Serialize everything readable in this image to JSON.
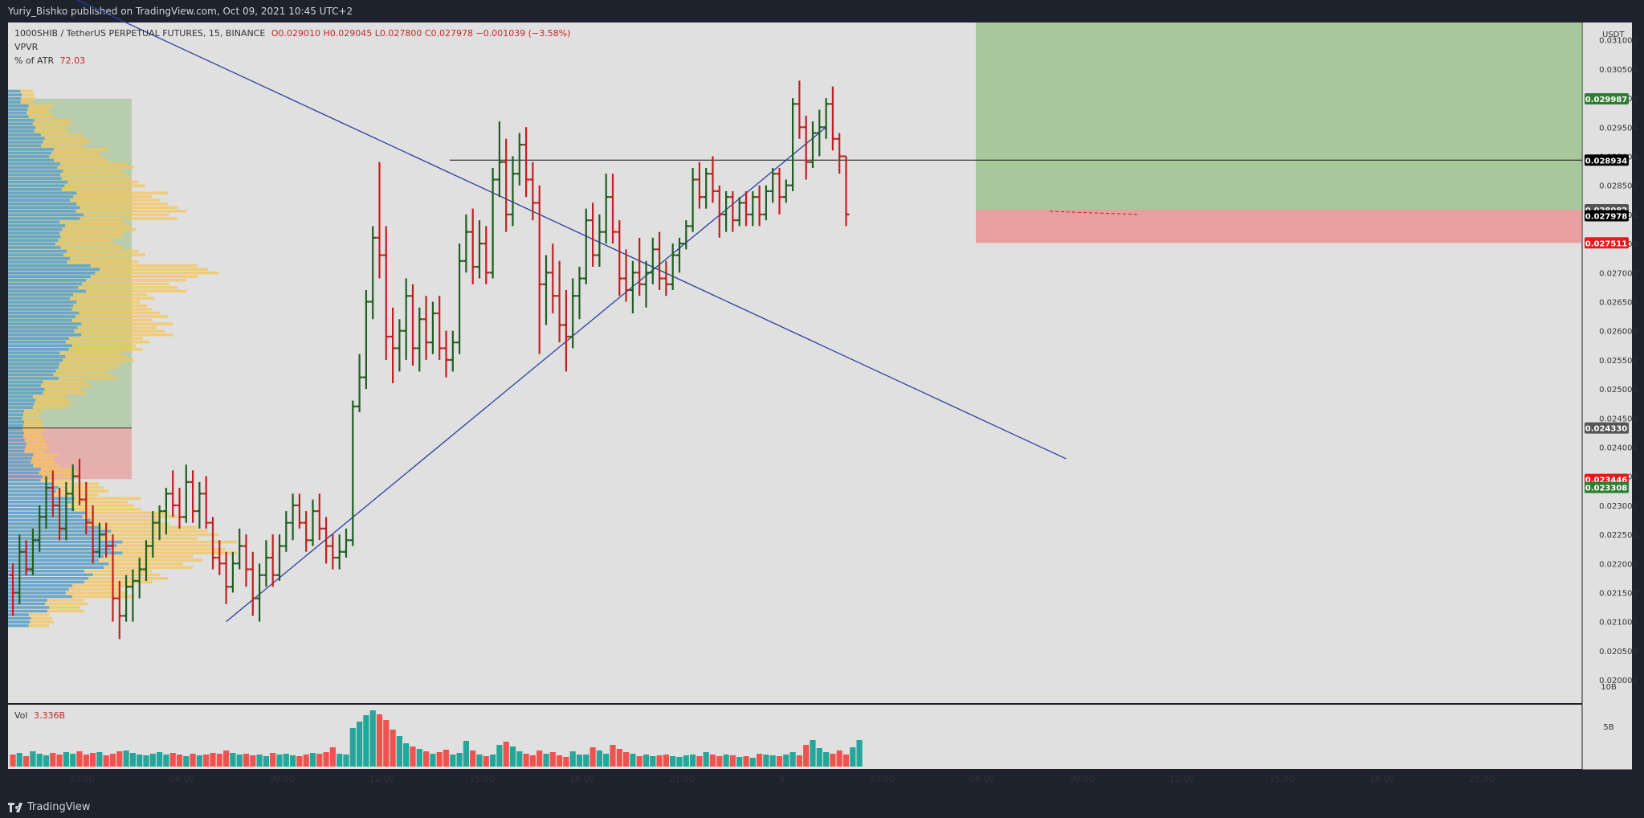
{
  "header": {
    "publisher": "Yuriy_Bishko published on TradingView.com, Oct 09, 2021 10:45 UTC+2"
  },
  "legend": {
    "symbol": "1000SHIB / TetherUS PERPETUAL FUTURES, 15, BINANCE",
    "ohlc": "O0.029010  H0.029045  L0.027800  C0.027978  −0.001039 (−3.58%)",
    "indicator1": "VPVR",
    "indicator2_label": "% of ATR",
    "indicator2_value": "72.03",
    "volume_label": "Vol",
    "volume_value": "3.336B"
  },
  "footer": {
    "brand": "TradingView"
  },
  "colors": {
    "up": "#1e5e20",
    "down": "#c11f1f",
    "vol_up": "#26a69a",
    "vol_down": "#ef5350",
    "trend": "#2c3e9e",
    "bg": "#e0e0e0"
  },
  "chart_data": {
    "type": "bar",
    "y_unit": "USDT",
    "ylim": [
      0.0196,
      0.0313
    ],
    "y_ticks": [
      "0.031000",
      "0.030500",
      "0.030000",
      "0.029500",
      "0.029000",
      "0.028500",
      "0.028000",
      "0.027500",
      "0.027000",
      "0.026500",
      "0.026000",
      "0.025500",
      "0.025000",
      "0.024500",
      "0.024000",
      "0.023500",
      "0.023000",
      "0.022500",
      "0.022000",
      "0.021500",
      "0.021000",
      "0.020500",
      "0.020000"
    ],
    "x_ticks": [
      "03:00",
      "06:00",
      "09:00",
      "12:00",
      "15:00",
      "18:00",
      "21:00",
      "9",
      "03:00",
      "06:00",
      "09:00",
      "12:00",
      "15:00",
      "18:00",
      "21:00"
    ],
    "price_labels": [
      {
        "text": "0.029987",
        "bg": "#2e7d32",
        "fg": "#ffffff"
      },
      {
        "text": "0.028934",
        "bg": "#000000",
        "fg": "#ffffff"
      },
      {
        "text": "0.028082",
        "bg": "#555555",
        "fg": "#ffffff"
      },
      {
        "text": "0.027978",
        "bg": "#000000",
        "fg": "#ffffff"
      },
      {
        "text": "0.027511",
        "bg": "#e31b1b",
        "fg": "#ffffff"
      },
      {
        "text": "0.024330",
        "bg": "#555555",
        "fg": "#ffffff"
      },
      {
        "text": "0.023446",
        "bg": "#e31b1b",
        "fg": "#ffffff"
      },
      {
        "text": "0.023308",
        "bg": "#2e7d32",
        "fg": "#ffffff"
      }
    ],
    "volume_ticks": [
      "10B",
      "5B"
    ],
    "horizontal_level": 0.028934,
    "position": {
      "entry": 0.028082,
      "target": 0.0313,
      "stop": 0.027511
    },
    "trendlines": [
      {
        "name": "descending",
        "from": [
          0,
          0.0322
        ],
        "to": [
          158,
          0.0238
        ]
      },
      {
        "name": "ascending",
        "from": [
          32,
          0.021
        ],
        "to": [
          122,
          0.0295
        ]
      }
    ],
    "candles_ohlc": [
      [
        0.0218,
        0.022,
        0.0211,
        0.0215
      ],
      [
        0.0215,
        0.0225,
        0.0213,
        0.0222
      ],
      [
        0.0222,
        0.0224,
        0.0218,
        0.0219
      ],
      [
        0.0219,
        0.0226,
        0.0218,
        0.0224
      ],
      [
        0.0224,
        0.023,
        0.0222,
        0.0228
      ],
      [
        0.0228,
        0.0235,
        0.0226,
        0.0233
      ],
      [
        0.0233,
        0.0236,
        0.0228,
        0.023
      ],
      [
        0.023,
        0.0233,
        0.0224,
        0.0226
      ],
      [
        0.0226,
        0.0234,
        0.0224,
        0.0232
      ],
      [
        0.0232,
        0.0237,
        0.0229,
        0.0235
      ],
      [
        0.0235,
        0.0238,
        0.023,
        0.0231
      ],
      [
        0.0231,
        0.0234,
        0.0225,
        0.0227
      ],
      [
        0.0227,
        0.023,
        0.022,
        0.0222
      ],
      [
        0.0222,
        0.0227,
        0.0221,
        0.0225
      ],
      [
        0.0225,
        0.0227,
        0.0221,
        0.0223
      ],
      [
        0.0223,
        0.0225,
        0.021,
        0.0214
      ],
      [
        0.0214,
        0.0217,
        0.0207,
        0.0211
      ],
      [
        0.0211,
        0.0218,
        0.021,
        0.0216
      ],
      [
        0.0216,
        0.0219,
        0.021,
        0.0217
      ],
      [
        0.0217,
        0.0221,
        0.0214,
        0.0219
      ],
      [
        0.0219,
        0.0224,
        0.0217,
        0.0223
      ],
      [
        0.0223,
        0.0229,
        0.0221,
        0.0227
      ],
      [
        0.0227,
        0.023,
        0.0224,
        0.0229
      ],
      [
        0.0229,
        0.0233,
        0.0225,
        0.0232
      ],
      [
        0.0232,
        0.0236,
        0.0228,
        0.023
      ],
      [
        0.023,
        0.0233,
        0.0226,
        0.0228
      ],
      [
        0.0228,
        0.0237,
        0.0227,
        0.0234
      ],
      [
        0.0234,
        0.0236,
        0.0227,
        0.0229
      ],
      [
        0.0229,
        0.0234,
        0.0226,
        0.0232
      ],
      [
        0.0232,
        0.0235,
        0.0226,
        0.0227
      ],
      [
        0.0227,
        0.0228,
        0.0219,
        0.0221
      ],
      [
        0.0221,
        0.0224,
        0.0218,
        0.022
      ],
      [
        0.022,
        0.0222,
        0.0213,
        0.0216
      ],
      [
        0.0216,
        0.0222,
        0.0215,
        0.022
      ],
      [
        0.022,
        0.0226,
        0.0219,
        0.0223
      ],
      [
        0.0223,
        0.0225,
        0.0216,
        0.0219
      ],
      [
        0.0219,
        0.0222,
        0.0211,
        0.0214
      ],
      [
        0.0214,
        0.022,
        0.021,
        0.0218
      ],
      [
        0.0218,
        0.0224,
        0.0216,
        0.0221
      ],
      [
        0.0221,
        0.0225,
        0.0216,
        0.0218
      ],
      [
        0.0218,
        0.0225,
        0.0217,
        0.0223
      ],
      [
        0.0223,
        0.0229,
        0.0222,
        0.0227
      ],
      [
        0.0227,
        0.0232,
        0.0224,
        0.023
      ],
      [
        0.023,
        0.0232,
        0.0226,
        0.0227
      ],
      [
        0.0227,
        0.0229,
        0.0222,
        0.0224
      ],
      [
        0.0224,
        0.0231,
        0.0223,
        0.0229
      ],
      [
        0.0229,
        0.0232,
        0.0224,
        0.0226
      ],
      [
        0.0226,
        0.0228,
        0.022,
        0.0223
      ],
      [
        0.0223,
        0.0225,
        0.0219,
        0.0221
      ],
      [
        0.0221,
        0.0225,
        0.0219,
        0.0222
      ],
      [
        0.0222,
        0.0226,
        0.0221,
        0.0224
      ],
      [
        0.0224,
        0.0248,
        0.0223,
        0.0247
      ],
      [
        0.0247,
        0.0256,
        0.0246,
        0.0252
      ],
      [
        0.0252,
        0.0267,
        0.025,
        0.0265
      ],
      [
        0.0265,
        0.0278,
        0.0262,
        0.0276
      ],
      [
        0.0276,
        0.0289,
        0.0269,
        0.0273
      ],
      [
        0.0273,
        0.0278,
        0.0255,
        0.0259
      ],
      [
        0.0259,
        0.0264,
        0.0251,
        0.0257
      ],
      [
        0.0257,
        0.0262,
        0.0253,
        0.026
      ],
      [
        0.026,
        0.0269,
        0.0255,
        0.0266
      ],
      [
        0.0266,
        0.0268,
        0.0254,
        0.0257
      ],
      [
        0.0257,
        0.0264,
        0.0253,
        0.0262
      ],
      [
        0.0262,
        0.0266,
        0.0255,
        0.0258
      ],
      [
        0.0258,
        0.0265,
        0.0256,
        0.0263
      ],
      [
        0.0263,
        0.0266,
        0.0255,
        0.0257
      ],
      [
        0.0257,
        0.026,
        0.0252,
        0.0255
      ],
      [
        0.0255,
        0.026,
        0.0253,
        0.0258
      ],
      [
        0.0258,
        0.0275,
        0.0256,
        0.0272
      ],
      [
        0.0272,
        0.028,
        0.027,
        0.0277
      ],
      [
        0.0277,
        0.0281,
        0.0268,
        0.0271
      ],
      [
        0.0271,
        0.0279,
        0.0269,
        0.0275
      ],
      [
        0.0275,
        0.0278,
        0.0268,
        0.027
      ],
      [
        0.027,
        0.0288,
        0.0269,
        0.0286
      ],
      [
        0.0286,
        0.0296,
        0.0283,
        0.0289
      ],
      [
        0.0289,
        0.0293,
        0.0277,
        0.028
      ],
      [
        0.028,
        0.029,
        0.0278,
        0.0287
      ],
      [
        0.0287,
        0.0294,
        0.0285,
        0.0292
      ],
      [
        0.0292,
        0.0295,
        0.0283,
        0.0286
      ],
      [
        0.0286,
        0.0289,
        0.0279,
        0.0282
      ],
      [
        0.0282,
        0.0285,
        0.0256,
        0.0268
      ],
      [
        0.0268,
        0.0273,
        0.0261,
        0.027
      ],
      [
        0.027,
        0.0275,
        0.0263,
        0.0266
      ],
      [
        0.0266,
        0.0272,
        0.0258,
        0.0261
      ],
      [
        0.0261,
        0.0267,
        0.0253,
        0.0259
      ],
      [
        0.0259,
        0.0269,
        0.0257,
        0.0266
      ],
      [
        0.0266,
        0.0271,
        0.0262,
        0.0269
      ],
      [
        0.0269,
        0.0281,
        0.0268,
        0.0279
      ],
      [
        0.0279,
        0.0282,
        0.0271,
        0.0273
      ],
      [
        0.0273,
        0.028,
        0.0271,
        0.0277
      ],
      [
        0.0277,
        0.0287,
        0.0275,
        0.0283
      ],
      [
        0.0283,
        0.0287,
        0.0275,
        0.0277
      ],
      [
        0.0277,
        0.0279,
        0.0266,
        0.0269
      ],
      [
        0.0269,
        0.0274,
        0.0265,
        0.0267
      ],
      [
        0.0267,
        0.0272,
        0.0263,
        0.027
      ],
      [
        0.027,
        0.0276,
        0.0266,
        0.0268
      ],
      [
        0.0268,
        0.0272,
        0.0264,
        0.027
      ],
      [
        0.027,
        0.0276,
        0.0268,
        0.0274
      ],
      [
        0.0274,
        0.0277,
        0.0267,
        0.0269
      ],
      [
        0.0269,
        0.0272,
        0.0266,
        0.0268
      ],
      [
        0.0268,
        0.0275,
        0.0267,
        0.0273
      ],
      [
        0.0273,
        0.0276,
        0.027,
        0.0275
      ],
      [
        0.0275,
        0.0279,
        0.0274,
        0.0278
      ],
      [
        0.0278,
        0.0288,
        0.0277,
        0.0286
      ],
      [
        0.0286,
        0.0289,
        0.0281,
        0.0283
      ],
      [
        0.0283,
        0.0288,
        0.0281,
        0.0287
      ],
      [
        0.0287,
        0.029,
        0.0282,
        0.0284
      ],
      [
        0.0284,
        0.0285,
        0.0276,
        0.028
      ],
      [
        0.028,
        0.0284,
        0.0277,
        0.0283
      ],
      [
        0.0283,
        0.0284,
        0.0277,
        0.0279
      ],
      [
        0.0279,
        0.0283,
        0.0278,
        0.0282
      ],
      [
        0.0282,
        0.0284,
        0.0278,
        0.028
      ],
      [
        0.028,
        0.0284,
        0.0278,
        0.0283
      ],
      [
        0.0283,
        0.0285,
        0.0278,
        0.028
      ],
      [
        0.028,
        0.0285,
        0.0279,
        0.0284
      ],
      [
        0.0284,
        0.0288,
        0.0282,
        0.0287
      ],
      [
        0.0287,
        0.0288,
        0.028,
        0.0283
      ],
      [
        0.0283,
        0.0286,
        0.0282,
        0.0285
      ],
      [
        0.0285,
        0.03,
        0.0284,
        0.0299
      ],
      [
        0.0299,
        0.0303,
        0.0293,
        0.0295
      ],
      [
        0.0295,
        0.0297,
        0.0286,
        0.0289
      ],
      [
        0.0289,
        0.0296,
        0.0288,
        0.0294
      ],
      [
        0.0294,
        0.0298,
        0.029,
        0.0295
      ],
      [
        0.0295,
        0.03,
        0.0293,
        0.0299
      ],
      [
        0.0299,
        0.0302,
        0.0291,
        0.0293
      ],
      [
        0.0293,
        0.0294,
        0.0287,
        0.029
      ],
      [
        0.029,
        0.029,
        0.0278,
        0.028
      ]
    ],
    "volume": [
      1.5,
      1.7,
      1.3,
      1.9,
      1.6,
      1.4,
      1.7,
      1.5,
      1.8,
      1.6,
      1.9,
      1.5,
      1.7,
      1.8,
      1.4,
      1.6,
      1.9,
      2.0,
      1.7,
      1.5,
      1.4,
      1.6,
      1.8,
      1.5,
      1.7,
      1.5,
      1.3,
      1.6,
      1.4,
      1.5,
      1.7,
      1.6,
      2.0,
      1.7,
      1.5,
      1.6,
      1.4,
      1.5,
      1.3,
      1.7,
      1.5,
      1.6,
      1.4,
      1.3,
      1.5,
      1.7,
      1.6,
      1.8,
      2.4,
      1.6,
      1.5,
      4.8,
      5.6,
      6.4,
      7.0,
      6.5,
      5.8,
      4.6,
      3.8,
      2.9,
      2.5,
      2.2,
      1.9,
      1.6,
      1.8,
      2.1,
      1.5,
      1.7,
      3.2,
      2.0,
      1.5,
      1.3,
      1.5,
      2.7,
      3.1,
      2.5,
      1.9,
      1.6,
      1.4,
      2.0,
      1.6,
      1.8,
      1.4,
      1.2,
      1.9,
      1.5,
      1.5,
      2.4,
      2.0,
      1.6,
      2.7,
      2.2,
      1.8,
      1.6,
      1.3,
      1.5,
      1.3,
      1.4,
      1.5,
      1.3,
      1.2,
      1.4,
      1.5,
      1.3,
      1.8,
      1.5,
      1.3,
      1.5,
      1.4,
      1.2,
      1.3,
      1.1,
      1.6,
      1.5,
      1.4,
      1.3,
      1.5,
      1.8,
      1.4,
      2.7,
      3.3,
      2.3,
      1.8,
      1.6,
      2.0,
      1.5,
      2.4,
      3.3
    ],
    "vpvr_bins": [
      {
        "price_low": 0.0209,
        "total": 0.2,
        "up": 0.1
      },
      {
        "price_low": 0.02115,
        "total": 0.35,
        "up": 0.18
      },
      {
        "price_low": 0.0214,
        "total": 0.55,
        "up": 0.28
      },
      {
        "price_low": 0.02165,
        "total": 0.7,
        "up": 0.37
      },
      {
        "price_low": 0.0219,
        "total": 0.85,
        "up": 0.44
      },
      {
        "price_low": 0.02215,
        "total": 1.0,
        "up": 0.5
      },
      {
        "price_low": 0.0224,
        "total": 0.92,
        "up": 0.45
      },
      {
        "price_low": 0.02265,
        "total": 0.74,
        "up": 0.36
      },
      {
        "price_low": 0.0229,
        "total": 0.58,
        "up": 0.29
      },
      {
        "price_low": 0.02315,
        "total": 0.44,
        "up": 0.22
      },
      {
        "price_low": 0.0234,
        "total": 0.3,
        "up": 0.15
      },
      {
        "price_low": 0.02365,
        "total": 0.22,
        "up": 0.11
      },
      {
        "price_low": 0.0239,
        "total": 0.18,
        "up": 0.08
      },
      {
        "price_low": 0.02415,
        "total": 0.16,
        "up": 0.07
      },
      {
        "price_low": 0.0244,
        "total": 0.15,
        "up": 0.07
      },
      {
        "price_low": 0.02465,
        "total": 0.28,
        "up": 0.12
      },
      {
        "price_low": 0.0249,
        "total": 0.36,
        "up": 0.16
      },
      {
        "price_low": 0.02515,
        "total": 0.48,
        "up": 0.22
      },
      {
        "price_low": 0.0254,
        "total": 0.55,
        "up": 0.25
      },
      {
        "price_low": 0.02565,
        "total": 0.62,
        "up": 0.28
      },
      {
        "price_low": 0.0259,
        "total": 0.72,
        "up": 0.32
      },
      {
        "price_low": 0.02615,
        "total": 0.7,
        "up": 0.31
      },
      {
        "price_low": 0.0264,
        "total": 0.64,
        "up": 0.3
      },
      {
        "price_low": 0.02665,
        "total": 0.78,
        "up": 0.34
      },
      {
        "price_low": 0.0269,
        "total": 0.92,
        "up": 0.4
      },
      {
        "price_low": 0.02715,
        "total": 0.6,
        "up": 0.27
      },
      {
        "price_low": 0.0274,
        "total": 0.5,
        "up": 0.23
      },
      {
        "price_low": 0.02765,
        "total": 0.56,
        "up": 0.25
      },
      {
        "price_low": 0.0279,
        "total": 0.78,
        "up": 0.33
      },
      {
        "price_low": 0.02815,
        "total": 0.7,
        "up": 0.3
      },
      {
        "price_low": 0.0284,
        "total": 0.6,
        "up": 0.26
      },
      {
        "price_low": 0.02865,
        "total": 0.55,
        "up": 0.24
      },
      {
        "price_low": 0.0289,
        "total": 0.44,
        "up": 0.2
      },
      {
        "price_low": 0.02915,
        "total": 0.36,
        "up": 0.16
      },
      {
        "price_low": 0.0294,
        "total": 0.28,
        "up": 0.12
      },
      {
        "price_low": 0.02965,
        "total": 0.2,
        "up": 0.09
      },
      {
        "price_low": 0.0299,
        "total": 0.12,
        "up": 0.06
      }
    ],
    "vpvr_value_area": [
      0.02433,
      0.02999
    ],
    "vpvr_lower_zone": [
      0.02345,
      0.02433
    ]
  }
}
